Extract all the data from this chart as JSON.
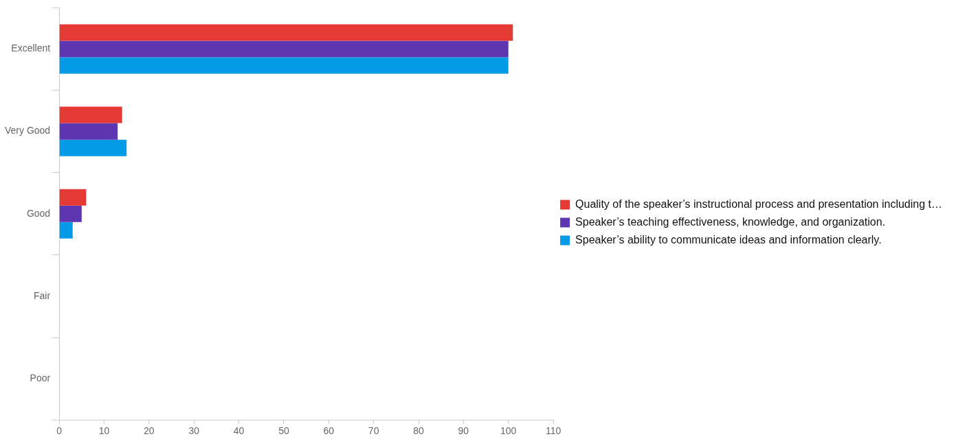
{
  "chart_data": {
    "type": "bar",
    "orientation": "horizontal",
    "categories": [
      "Excellent",
      "Very Good",
      "Good",
      "Fair",
      "Poor"
    ],
    "series": [
      {
        "name": "Quality of the speaker’s instructional process and presentation including t…",
        "color": "#e53935",
        "values": [
          101,
          14,
          6,
          0,
          0
        ]
      },
      {
        "name": "Speaker’s teaching effectiveness, knowledge, and organization.",
        "color": "#5e35b1",
        "values": [
          100,
          13,
          5,
          0,
          0
        ]
      },
      {
        "name": "Speaker’s ability to communicate ideas and information clearly.",
        "color": "#039be5",
        "values": [
          100,
          15,
          3,
          0,
          0
        ]
      }
    ],
    "xlim": [
      0,
      110
    ],
    "xticks": [
      0,
      10,
      20,
      30,
      40,
      50,
      60,
      70,
      80,
      90,
      100,
      110
    ],
    "grid": false,
    "legend": "right"
  }
}
